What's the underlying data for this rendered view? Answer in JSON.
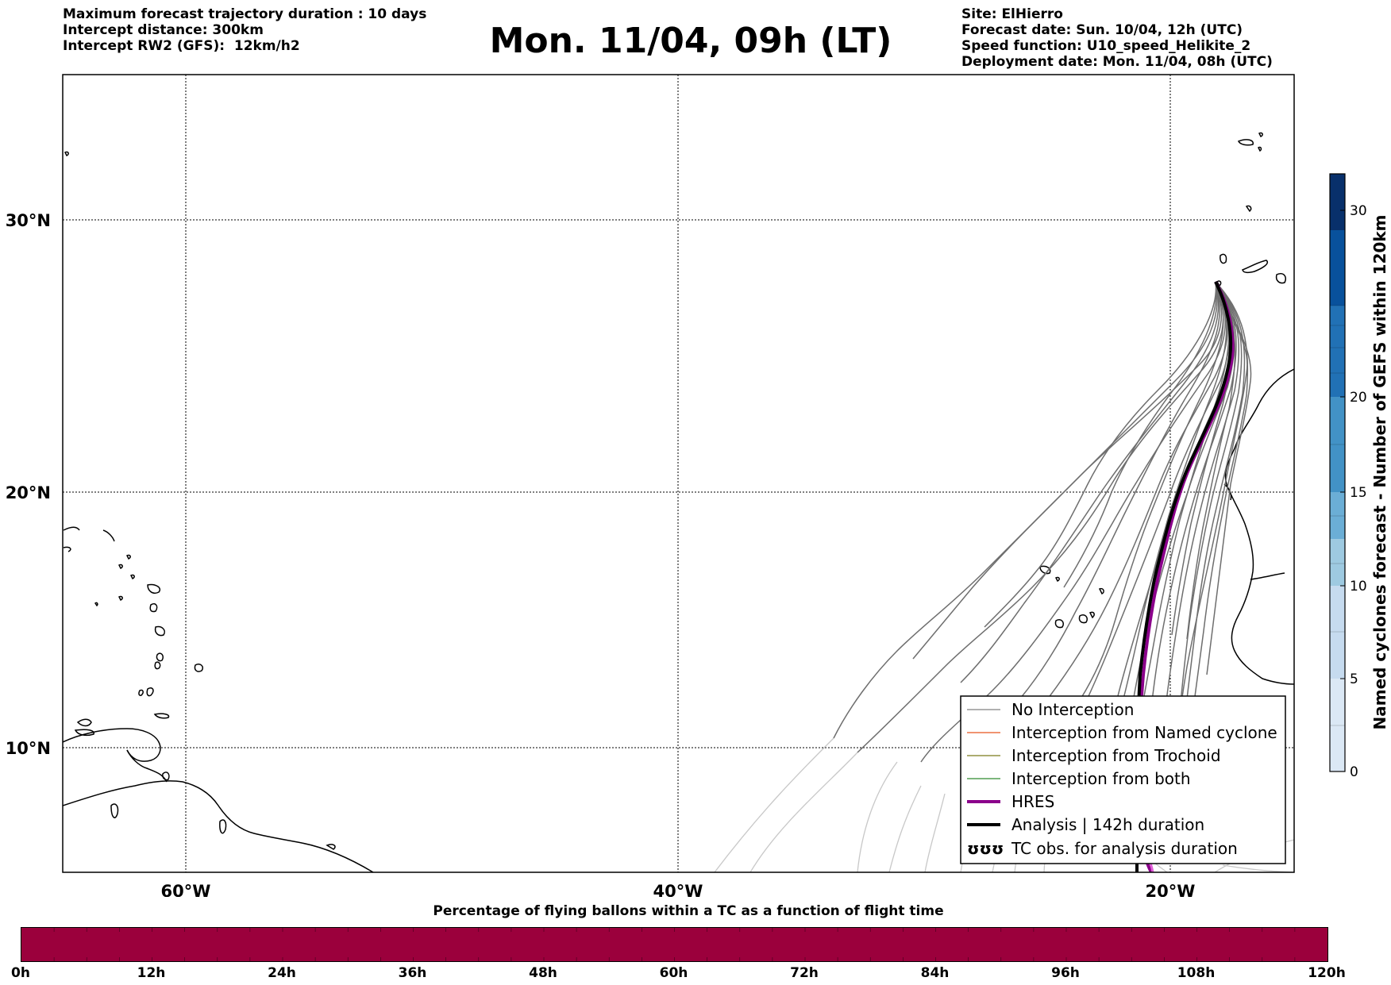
{
  "header": {
    "left_lines": [
      "Maximum forecast trajectory duration : 10 days",
      "Intercept distance: 300km",
      "Intercept RW2 (GFS):  12km/h2"
    ],
    "title": "Mon. 11/04, 09h (LT)",
    "right_lines": [
      "Site: ElHierro",
      "Forecast date: Sun. 10/04, 12h (UTC)",
      "Speed function: U10_speed_Helikite_2",
      "Deployment date: Mon. 11/04, 08h (UTC)"
    ]
  },
  "map": {
    "lon_labels": [
      "60°W",
      "40°W",
      "20°W"
    ],
    "lat_labels": [
      "30°N",
      "20°N",
      "10°N"
    ],
    "legend": [
      {
        "label": "No Interception",
        "color": "#808080",
        "style": "thin"
      },
      {
        "label": "Interception from Named cyclone",
        "color": "#e8541c",
        "style": "thin"
      },
      {
        "label": "Interception from Trochoid",
        "color": "#7a7a1a",
        "style": "thin"
      },
      {
        "label": "Interception from both",
        "color": "#2e8b2e",
        "style": "thin"
      },
      {
        "label": "HRES",
        "color": "#8b008b",
        "style": "thick"
      },
      {
        "label": "Analysis | 142h duration",
        "color": "#000000",
        "style": "thick"
      },
      {
        "label": "TC obs. for analysis duration",
        "color": "#000000",
        "style": "symbol",
        "symbol": "ʊʊʊ"
      }
    ]
  },
  "colorbar": {
    "title": "Named cyclones forecast - Number of GEFS within 120km",
    "ticks": [
      "0",
      "5",
      "10",
      "15",
      "20",
      "30"
    ],
    "colors": [
      "#dbe8f5",
      "#c6dbef",
      "#9ecae1",
      "#6baed6",
      "#4292c6",
      "#2171b5",
      "#08519c",
      "#08306b"
    ]
  },
  "time_bar": {
    "title": "Percentage of flying ballons within a TC as a function of flight time",
    "ticks": [
      "0h",
      "12h",
      "24h",
      "36h",
      "48h",
      "60h",
      "72h",
      "84h",
      "96h",
      "108h",
      "120h"
    ],
    "fill_color": "#9b003c"
  }
}
